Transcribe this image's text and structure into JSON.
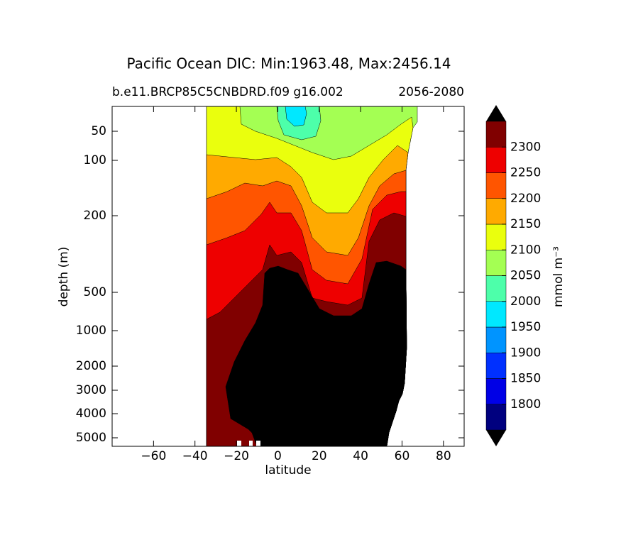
{
  "chart_data": {
    "type": "contour",
    "title": "Pacific Ocean DIC: Min:1963.48, Max:2456.14",
    "subtitle_left": "b.e11.BRCP85C5CNBDRD.f09 g16.002",
    "subtitle_right": "2056-2080",
    "xlabel": "latitude",
    "ylabel": "depth (m)",
    "xlim": [
      -80,
      90
    ],
    "xticks": [
      {
        "value": -60,
        "label": "−60"
      },
      {
        "value": -40,
        "label": "−40"
      },
      {
        "value": -20,
        "label": "−20"
      },
      0,
      20,
      40,
      60,
      80
    ],
    "ylim": [
      0,
      5500
    ],
    "yinvert": true,
    "yticks": [
      50,
      100,
      200,
      500,
      1000,
      2000,
      3000,
      4000,
      5000
    ],
    "colorbar": {
      "label": "mmol m⁻³",
      "levels": [
        1750,
        1800,
        1850,
        1900,
        1950,
        2000,
        2050,
        2100,
        2150,
        2200,
        2250,
        2300,
        2350
      ],
      "colors": [
        "#00007f",
        "#0000e6",
        "#0030ff",
        "#0094ff",
        "#00e8ff",
        "#4dffaa",
        "#a4ff53",
        "#eaff0d",
        "#ffaa00",
        "#ff5500",
        "#ee0000",
        "#800000"
      ],
      "ticks": [
        1800,
        1850,
        1900,
        1950,
        2000,
        2050,
        2100,
        2150,
        2200,
        2250,
        2300
      ],
      "over_color": "#000000",
      "under_color": "#000000"
    }
  }
}
